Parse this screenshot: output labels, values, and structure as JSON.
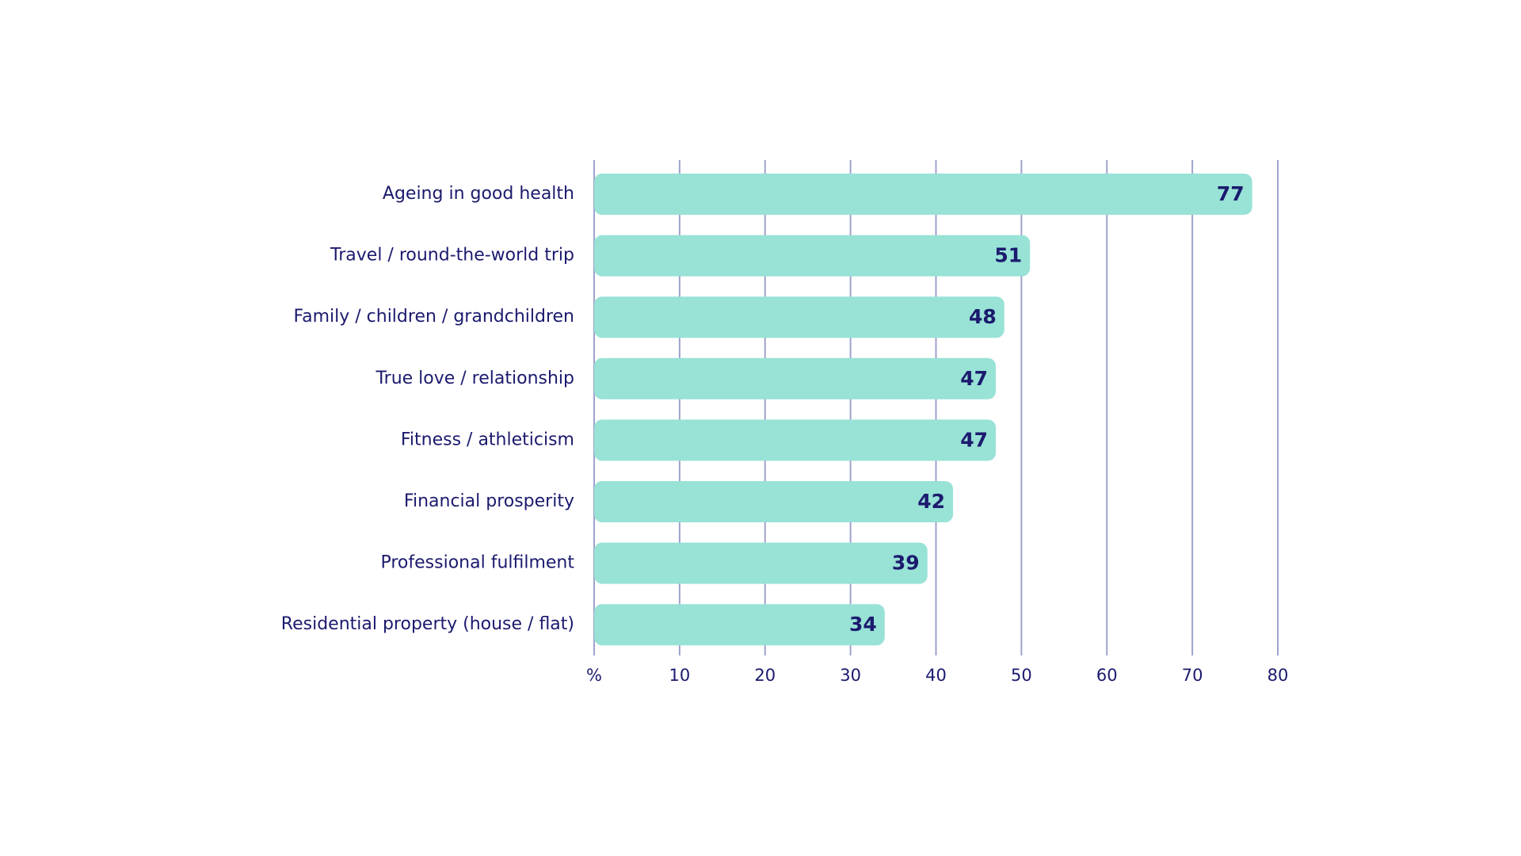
{
  "chart_data": {
    "type": "bar",
    "orientation": "horizontal",
    "categories": [
      "Ageing in good health",
      "Travel / round-the-world trip",
      "Family / children / grandchildren",
      "True love / relationship",
      "Fitness / athleticism",
      "Financial prosperity",
      "Professional fulfilment",
      "Residential property (house / flat)"
    ],
    "values": [
      77,
      51,
      48,
      47,
      47,
      42,
      39,
      34
    ],
    "xlim": [
      0,
      80
    ],
    "xticks": [
      0,
      10,
      20,
      30,
      40,
      50,
      60,
      70,
      80
    ],
    "xtick_labels": [
      "%",
      "10",
      "20",
      "30",
      "40",
      "50",
      "60",
      "70",
      "80"
    ],
    "grid": "vertical",
    "data_labels": true,
    "legend": "none",
    "colors": {
      "bar": "#98e2d6",
      "text": "#1b1a6e",
      "grid": "#9ea3cc"
    }
  }
}
